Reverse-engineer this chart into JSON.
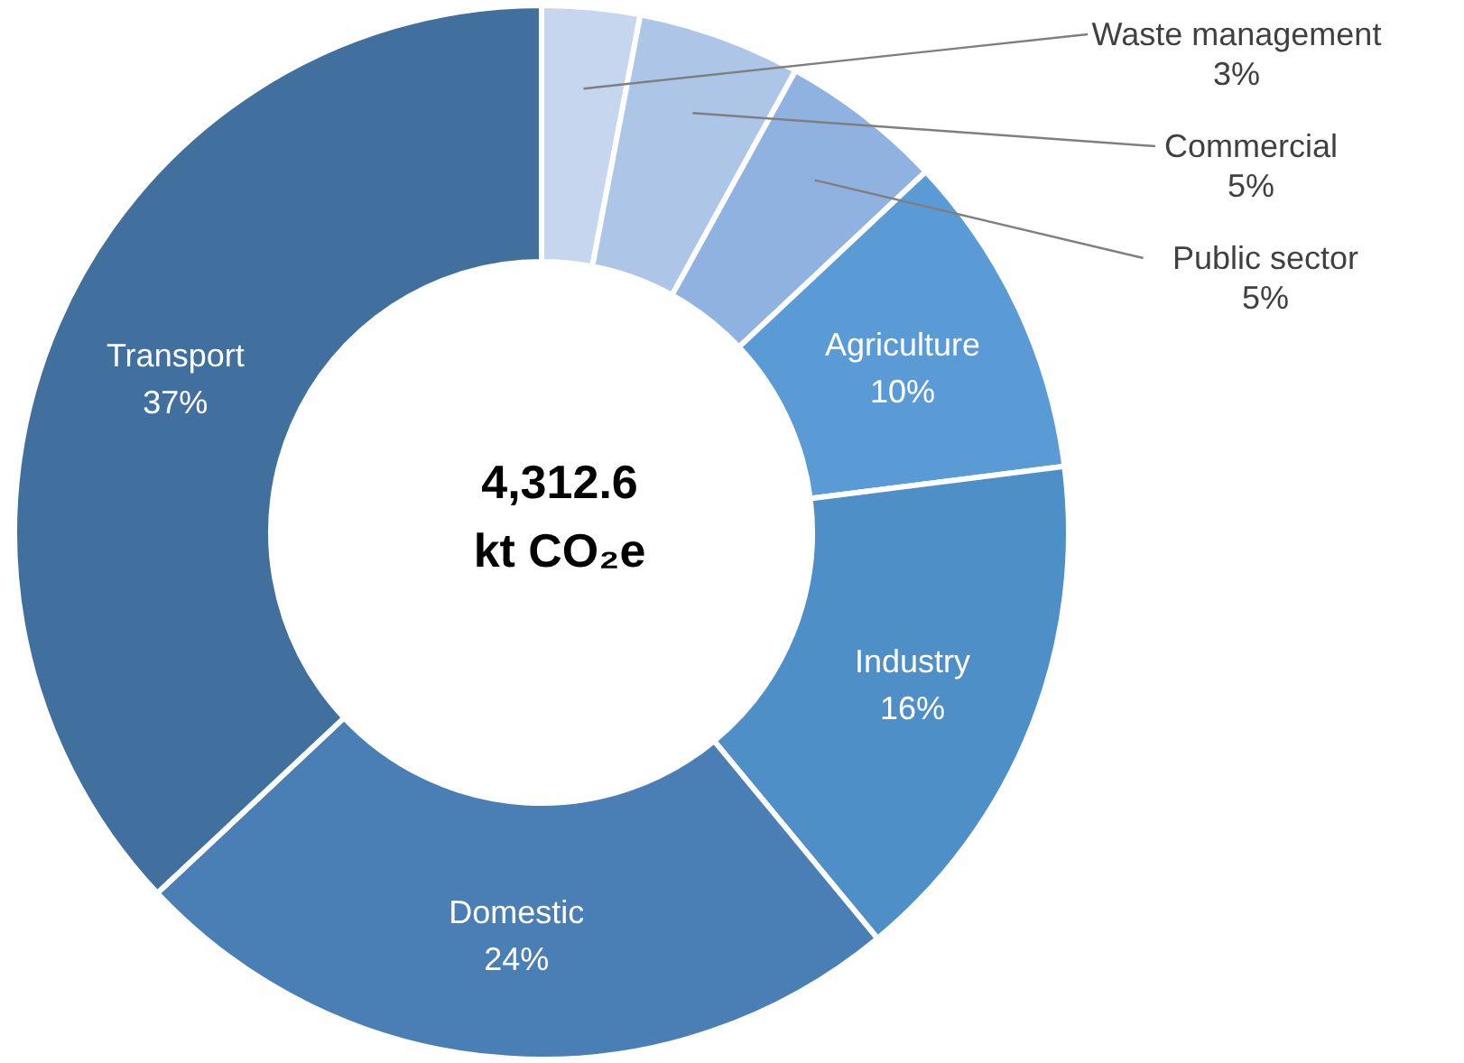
{
  "chart_data": {
    "type": "donut",
    "categories": [
      "Waste management",
      "Commercial",
      "Public sector",
      "Agriculture",
      "Industry",
      "Domestic",
      "Transport"
    ],
    "values": [
      3,
      5,
      5,
      10,
      16,
      24,
      37
    ],
    "value_labels": [
      "3%",
      "5%",
      "5%",
      "10%",
      "16%",
      "24%",
      "37%"
    ],
    "colors": [
      "#c5d6ee",
      "#adc6e8",
      "#8fb2e0",
      "#5b9bd5",
      "#4f8fc8",
      "#4a7fb5",
      "#41709f"
    ],
    "annotations": [
      "4,312.6",
      "kt CO₂e"
    ]
  }
}
